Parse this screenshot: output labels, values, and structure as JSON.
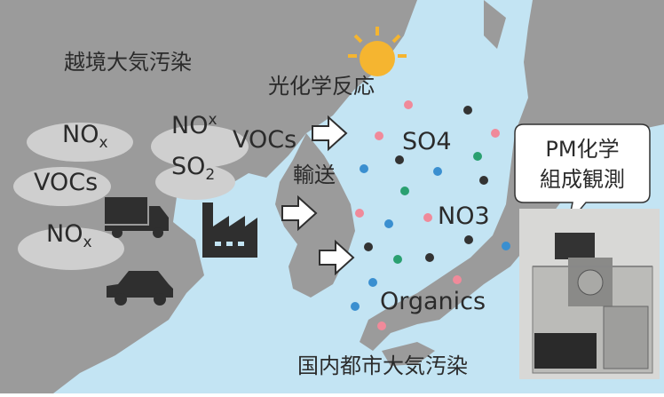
{
  "labels": {
    "cross_border": "越境大気汚染",
    "photochemistry": "光化学反応",
    "transport": "輸送",
    "domestic": "国内都市大気汚染"
  },
  "sources": [
    {
      "base": "NO",
      "sub": "x"
    },
    {
      "text": "VOCs"
    },
    {
      "base": "NO",
      "sub": "x"
    },
    {
      "base": "NO",
      "sub": "x"
    },
    {
      "base": "SO",
      "sub": "2"
    },
    {
      "text": "VOCs"
    }
  ],
  "species": [
    "SO4",
    "NO3",
    "Organics"
  ],
  "bubble": [
    "PM化学",
    "組成観測"
  ]
}
